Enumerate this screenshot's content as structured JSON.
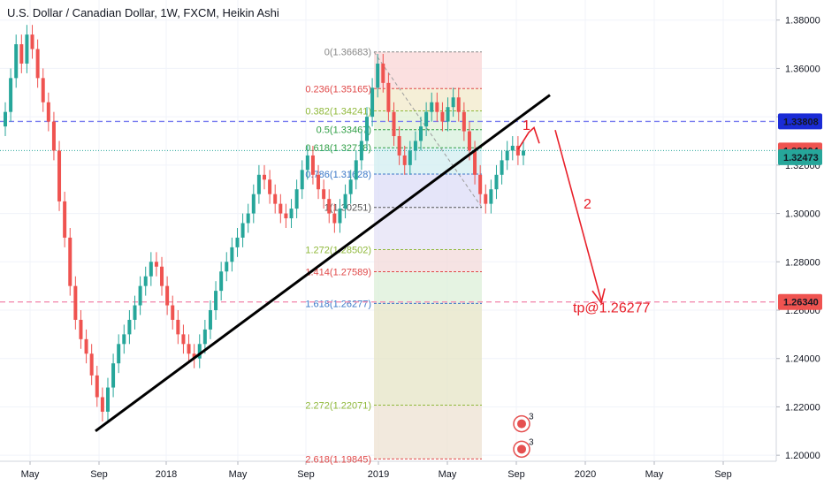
{
  "header": {
    "title": "U.S. Dollar / Canadian Dollar, 1W, FXCM, Heikin Ashi"
  },
  "colors": {
    "up": "#26a69a",
    "down": "#ef5350",
    "trendline": "#000000",
    "annotation": "#e8202a",
    "fib_level_1": "#ffd8d8",
    "fib_level_2": "#dfe8c6",
    "price_label_blue": "#1a2bd6",
    "price_label_red": "#ef5350",
    "price_label_green": "#26a69a"
  },
  "chart_data": {
    "type": "candlestick",
    "ylim": [
      1.1975,
      1.3883
    ],
    "y_ticks": [
      "1.38000",
      "1.36000",
      "1.34000",
      "1.32000",
      "1.30000",
      "1.28000",
      "1.26000",
      "1.24000",
      "1.22000",
      "1.20000"
    ],
    "x_ticks": [
      "May",
      "Sep",
      "2018",
      "May",
      "Sep",
      "2019",
      "May",
      "Sep",
      "2020",
      "May",
      "Sep"
    ],
    "price_labels": [
      {
        "value": "1.33808",
        "color": "#1a2bd6"
      },
      {
        "value": "1.32604",
        "color": "#ef5350"
      },
      {
        "value": "1.32473",
        "color": "#26a69a"
      },
      {
        "value": "1.26340",
        "color": "#ef5350"
      }
    ],
    "fib_levels": [
      {
        "label": "0(1.36683)",
        "color": "#888888"
      },
      {
        "label": "0.236(1.35165)",
        "color": "#e04848"
      },
      {
        "label": "0.382(1.34241)",
        "color": "#8fb83a"
      },
      {
        "label": "0.5(1.33467)",
        "color": "#2f9e45"
      },
      {
        "label": "0.618(1.32718)",
        "color": "#2f9e45"
      },
      {
        "label": "0.786(1.31628)",
        "color": "#3b78c8"
      },
      {
        "label": "1(1.30251)",
        "color": "#555555"
      },
      {
        "label": "1.272(1.28502)",
        "color": "#8fb83a"
      },
      {
        "label": "1.414(1.27589)",
        "color": "#e04848"
      },
      {
        "label": "1.618(1.26277)",
        "color": "#3b78c8"
      },
      {
        "label": "2.272(1.22071)",
        "color": "#8fb83a"
      },
      {
        "label": "2.618(1.19845)",
        "color": "#e04848"
      }
    ],
    "trendline": {
      "from": [
        1.21
      ],
      "to": [
        1.349
      ]
    },
    "annotations": {
      "wave1": "1",
      "wave2": "2",
      "target": "tp@1.26277"
    },
    "event_badges": [
      "3",
      "3"
    ],
    "candles_open_close": [
      [
        1.336,
        1.342
      ],
      [
        1.342,
        1.356
      ],
      [
        1.356,
        1.37
      ],
      [
        1.37,
        1.362
      ],
      [
        1.362,
        1.374
      ],
      [
        1.374,
        1.368
      ],
      [
        1.368,
        1.356
      ],
      [
        1.356,
        1.346
      ],
      [
        1.346,
        1.338
      ],
      [
        1.338,
        1.326
      ],
      [
        1.326,
        1.305
      ],
      [
        1.305,
        1.29
      ],
      [
        1.29,
        1.27
      ],
      [
        1.27,
        1.256
      ],
      [
        1.256,
        1.248
      ],
      [
        1.248,
        1.242
      ],
      [
        1.242,
        1.233
      ],
      [
        1.233,
        1.224
      ],
      [
        1.224,
        1.218
      ],
      [
        1.218,
        1.228
      ],
      [
        1.228,
        1.238
      ],
      [
        1.238,
        1.246
      ],
      [
        1.246,
        1.25
      ],
      [
        1.25,
        1.256
      ],
      [
        1.256,
        1.262
      ],
      [
        1.262,
        1.27
      ],
      [
        1.27,
        1.274
      ],
      [
        1.274,
        1.28
      ],
      [
        1.28,
        1.278
      ],
      [
        1.278,
        1.27
      ],
      [
        1.27,
        1.262
      ],
      [
        1.262,
        1.256
      ],
      [
        1.256,
        1.25
      ],
      [
        1.25,
        1.246
      ],
      [
        1.246,
        1.242
      ],
      [
        1.242,
        1.24
      ],
      [
        1.24,
        1.246
      ],
      [
        1.246,
        1.252
      ],
      [
        1.252,
        1.26
      ],
      [
        1.26,
        1.268
      ],
      [
        1.268,
        1.276
      ],
      [
        1.276,
        1.28
      ],
      [
        1.28,
        1.286
      ],
      [
        1.286,
        1.29
      ],
      [
        1.29,
        1.296
      ],
      [
        1.296,
        1.3
      ],
      [
        1.3,
        1.308
      ],
      [
        1.308,
        1.316
      ],
      [
        1.316,
        1.314
      ],
      [
        1.314,
        1.308
      ],
      [
        1.308,
        1.304
      ],
      [
        1.304,
        1.3
      ],
      [
        1.3,
        1.298
      ],
      [
        1.298,
        1.302
      ],
      [
        1.302,
        1.31
      ],
      [
        1.31,
        1.318
      ],
      [
        1.318,
        1.324
      ],
      [
        1.324,
        1.316
      ],
      [
        1.316,
        1.31
      ],
      [
        1.31,
        1.306
      ],
      [
        1.306,
        1.3
      ],
      [
        1.3,
        1.296
      ],
      [
        1.296,
        1.302
      ],
      [
        1.302,
        1.308
      ],
      [
        1.308,
        1.314
      ],
      [
        1.314,
        1.322
      ],
      [
        1.322,
        1.33
      ],
      [
        1.33,
        1.34
      ],
      [
        1.34,
        1.352
      ],
      [
        1.352,
        1.362
      ],
      [
        1.362,
        1.354
      ],
      [
        1.354,
        1.342
      ],
      [
        1.342,
        1.332
      ],
      [
        1.332,
        1.324
      ],
      [
        1.324,
        1.32
      ],
      [
        1.32,
        1.326
      ],
      [
        1.326,
        1.33
      ],
      [
        1.33,
        1.336
      ],
      [
        1.336,
        1.342
      ],
      [
        1.342,
        1.346
      ],
      [
        1.346,
        1.342
      ],
      [
        1.342,
        1.338
      ],
      [
        1.338,
        1.344
      ],
      [
        1.344,
        1.348
      ],
      [
        1.348,
        1.342
      ],
      [
        1.342,
        1.334
      ],
      [
        1.334,
        1.326
      ],
      [
        1.326,
        1.316
      ],
      [
        1.316,
        1.308
      ],
      [
        1.308,
        1.304
      ],
      [
        1.304,
        1.31
      ],
      [
        1.31,
        1.316
      ],
      [
        1.316,
        1.322
      ],
      [
        1.322,
        1.326
      ],
      [
        1.326,
        1.328
      ],
      [
        1.328,
        1.324
      ],
      [
        1.324,
        1.326
      ]
    ]
  }
}
